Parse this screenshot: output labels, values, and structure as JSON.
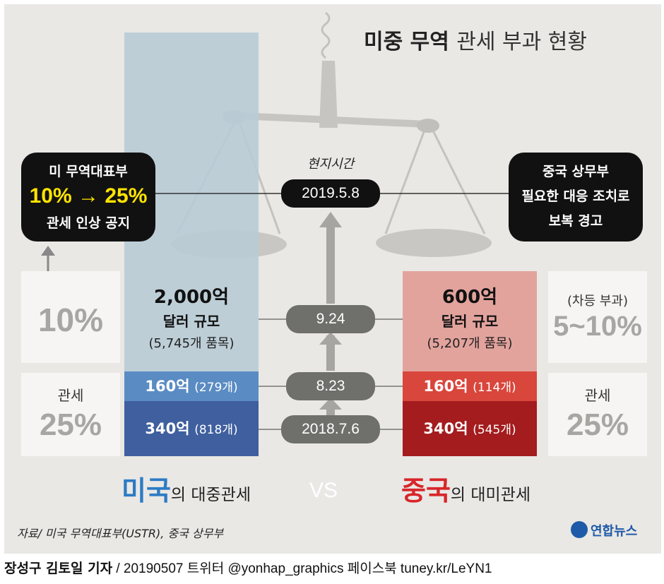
{
  "title_bold": "미중 무역",
  "title_light": "관세 부과 현황",
  "us": {
    "announcement_line1": "미 무역대표부",
    "announcement_rate": "10% → 25%",
    "announcement_line3": "관세 인상 공지",
    "rate_prev": "10%",
    "tier_top_amount": "2,000억",
    "tier_top_unit": "달러 규모",
    "tier_top_items": "(5,745개 품목)",
    "tier_mid_amount": "160억",
    "tier_mid_items": "(279개)",
    "tier_bot_amount": "340억",
    "tier_bot_items": "(818개)",
    "tariff_label": "관세",
    "tariff_rate": "25%",
    "caption_big": "미국",
    "caption_rest": "의 대중관세"
  },
  "china": {
    "response_line1": "중국 상무부",
    "response_line2": "필요한 대응 조치로",
    "response_line3": "보복 경고",
    "differential_label": "(차등 부과)",
    "differential_rate": "5~10%",
    "tier_top_amount": "600억",
    "tier_top_unit": "달러 규모",
    "tier_top_items": "(5,207개 품목)",
    "tier_mid_amount": "160억",
    "tier_mid_items": "(114개)",
    "tier_bot_amount": "340억",
    "tier_bot_items": "(545개)",
    "tariff_label": "관세",
    "tariff_rate": "25%",
    "caption_big": "중국",
    "caption_rest": "의 대미관세"
  },
  "timeline": {
    "local_time_label": "현지시간",
    "dates": [
      "2019.5.8",
      "9.24",
      "8.23",
      "2018.7.6"
    ]
  },
  "vs": "VS",
  "source": "자료/ 미국 무역대표부(USTR), 중국 상무부",
  "logo_text": "연합뉴스",
  "footer": {
    "byline": "장성구 김토일 기자",
    "rest": " / 20190507   트위터 @yonhap_graphics  페이스북 tuney.kr/LeYN1"
  },
  "colors": {
    "us_light": "#b9cbd6",
    "us_mid": "#5a8cc3",
    "us_dark": "#3f5f9f",
    "china_light": "#e3a39d",
    "china_mid": "#d9463c",
    "china_dark": "#a41c1e",
    "accent_yellow": "#ffe400",
    "us_text": "#2d7bc4",
    "china_text": "#d8262a"
  },
  "chart_data": {
    "type": "bar",
    "title": "미중 무역 관세 부과 현황",
    "categories": [
      "2018.7.6",
      "8.23",
      "9.24"
    ],
    "series": [
      {
        "name": "미국",
        "values_억달러": [
          340,
          160,
          2000
        ],
        "items": [
          818,
          279,
          5745
        ],
        "rates": [
          "25%",
          "25%",
          "10%→25%"
        ]
      },
      {
        "name": "중국",
        "values_억달러": [
          340,
          160,
          600
        ],
        "items": [
          545,
          114,
          5207
        ],
        "rates": [
          "25%",
          "25%",
          "5~10%"
        ]
      }
    ]
  }
}
